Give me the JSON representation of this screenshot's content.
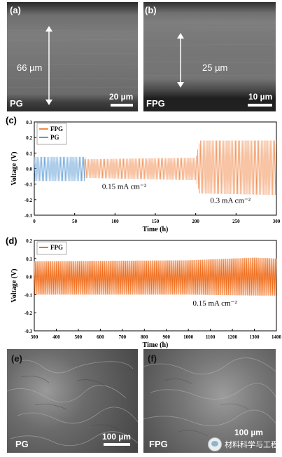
{
  "panels": {
    "a": {
      "label": "(a)",
      "sample": "PG",
      "thickness": "66 µm",
      "scale": "20 µm"
    },
    "b": {
      "label": "(b)",
      "sample": "FPG",
      "thickness": "25 µm",
      "scale": "10 µm"
    },
    "e": {
      "label": "(e)",
      "sample": "PG",
      "scale": "100 µm"
    },
    "f": {
      "label": "(f)",
      "sample": "FPG",
      "scale": "100 µm"
    }
  },
  "chart_data": [
    {
      "type": "line",
      "panel_label": "(c)",
      "xlabel": "Time (h)",
      "ylabel": "Voltage (V)",
      "xlim": [
        0,
        300
      ],
      "ylim": [
        -0.3,
        0.3
      ],
      "x_ticks": [
        "0",
        "50",
        "100",
        "150",
        "200",
        "250",
        "300"
      ],
      "y_ticks": [
        "0.3",
        "0.2",
        "0.1",
        "0.0",
        "-0.1",
        "-0.2",
        "-0.3"
      ],
      "legend_position": "top-left",
      "series": [
        {
          "name": "FPG",
          "color": "#f08a4b",
          "envelope": [
            [
              62,
              0.06
            ],
            [
              200,
              0.07
            ],
            [
              205,
              0.18
            ],
            [
              300,
              0.18
            ]
          ],
          "envelope_low": [
            [
              62,
              -0.06
            ],
            [
              200,
              -0.075
            ],
            [
              205,
              -0.16
            ],
            [
              300,
              -0.17
            ]
          ]
        },
        {
          "name": "PG",
          "color": "#5b9bd5",
          "envelope": [
            [
              0,
              0.075
            ],
            [
              63,
              0.075
            ]
          ],
          "envelope_low": [
            [
              0,
              -0.08
            ],
            [
              63,
              -0.08
            ]
          ]
        }
      ],
      "annotations": [
        "0.15 mA cm⁻²",
        "0.3 mA cm⁻²"
      ]
    },
    {
      "type": "line",
      "panel_label": "(d)",
      "xlabel": "Time (h)",
      "ylabel": "Voltage (V)",
      "xlim": [
        300,
        1400
      ],
      "ylim": [
        -0.3,
        0.2
      ],
      "x_ticks": [
        "300",
        "400",
        "500",
        "600",
        "700",
        "800",
        "900",
        "1000",
        "1100",
        "1200",
        "1300",
        "1400"
      ],
      "y_ticks": [
        "0.2",
        "0.1",
        "0.0",
        "-0.1",
        "-0.2",
        "-0.3"
      ],
      "legend_position": "top-left",
      "series": [
        {
          "name": "FPG",
          "color": "#f07020",
          "envelope": [
            [
              300,
              0.085
            ],
            [
              1000,
              0.09
            ],
            [
              1300,
              0.105
            ],
            [
              1400,
              0.1
            ]
          ],
          "envelope_low": [
            [
              300,
              -0.1
            ],
            [
              1000,
              -0.1
            ],
            [
              1300,
              -0.105
            ],
            [
              1400,
              -0.105
            ]
          ]
        }
      ],
      "annotations": [
        "0.15 mA cm⁻²"
      ]
    }
  ],
  "watermark": {
    "text": "材料科学与工程"
  }
}
